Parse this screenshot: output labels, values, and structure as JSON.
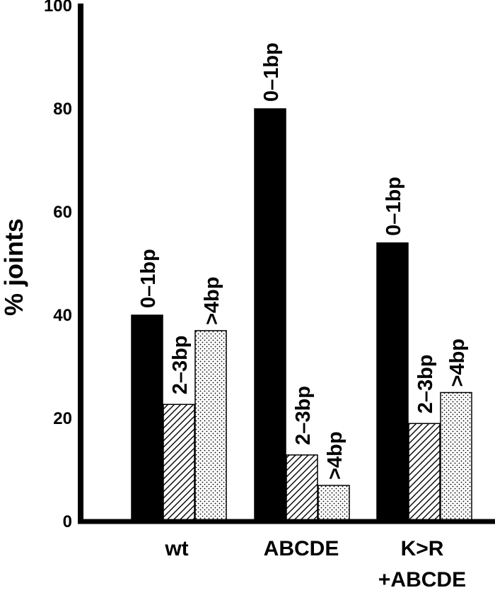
{
  "chart_data": {
    "type": "bar",
    "title": "",
    "xlabel": "",
    "ylabel": "% joints",
    "ylim": [
      0,
      100
    ],
    "yticks": [
      "0",
      "20",
      "40",
      "60",
      "80",
      "100"
    ],
    "categories": [
      {
        "lines": [
          "wt"
        ]
      },
      {
        "lines": [
          "ABCDE"
        ]
      },
      {
        "lines": [
          "K>R",
          "+ABCDE"
        ]
      }
    ],
    "series": [
      {
        "label": "0–1bp",
        "fill": "solid",
        "color": "#000000",
        "values": [
          40,
          80,
          54
        ]
      },
      {
        "label": "2–3bp",
        "fill": "hatched",
        "color": "#000000",
        "values": [
          22.7,
          12.9,
          19
        ]
      },
      {
        "label": ">4bp",
        "fill": "dotted",
        "color": "#000000",
        "values": [
          37,
          7,
          25
        ]
      }
    ],
    "grid": false,
    "legend": "none"
  }
}
